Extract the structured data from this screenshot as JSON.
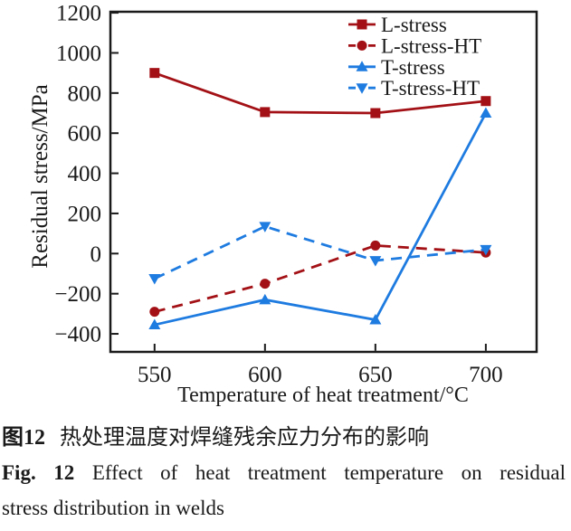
{
  "figure": {
    "caption_cn": {
      "label": "图12",
      "text": "热处理温度对焊缝残余应力分布的影响"
    },
    "caption_en": {
      "label": "Fig. 12",
      "line1": "Effect of heat treatment temperature on residual",
      "line2": "stress distribution in welds"
    }
  },
  "chart_data": {
    "type": "line",
    "title": "",
    "xlabel": "Temperature of heat treatment/°C",
    "ylabel": "Residual stress/MPa",
    "x": [
      550,
      600,
      650,
      700
    ],
    "xticks": [
      550,
      600,
      650,
      700
    ],
    "yticks": [
      -400,
      -200,
      0,
      200,
      400,
      600,
      800,
      1000,
      1200
    ],
    "xlim": [
      530,
      723
    ],
    "ylim": [
      -490,
      1205
    ],
    "grid": false,
    "legend_position": "top-right-inside",
    "frame_color": "#1a1a1a",
    "series": [
      {
        "name": "L-stress",
        "values": [
          900,
          705,
          700,
          760
        ],
        "color": "#a31116",
        "line_style": "solid",
        "marker": "square"
      },
      {
        "name": "L-stress-HT",
        "values": [
          -290,
          -150,
          40,
          5
        ],
        "color": "#a31116",
        "line_style": "dashed",
        "marker": "circle"
      },
      {
        "name": "T-stress",
        "values": [
          -355,
          -230,
          -330,
          700
        ],
        "color": "#1e7be0",
        "line_style": "solid",
        "marker": "triangle-up"
      },
      {
        "name": "T-stress-HT",
        "values": [
          -125,
          135,
          -35,
          20
        ],
        "color": "#1e7be0",
        "line_style": "dashed",
        "marker": "triangle-down"
      }
    ]
  }
}
